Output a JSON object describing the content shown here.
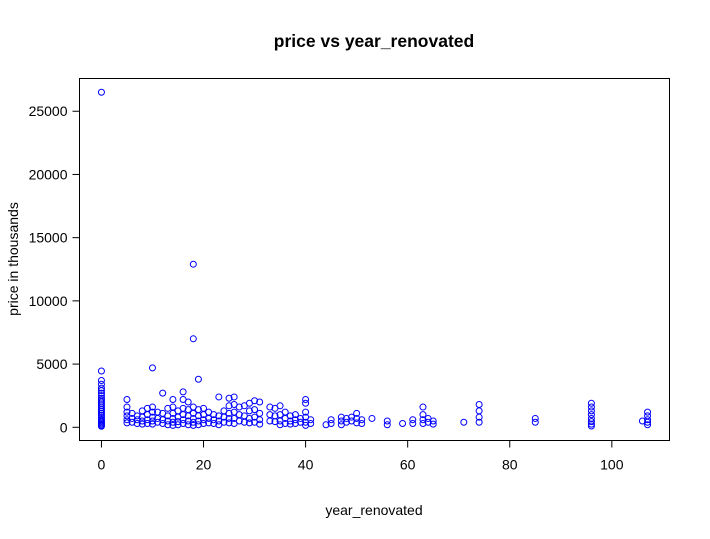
{
  "chart_data": {
    "type": "scatter",
    "title": "price vs year_renovated",
    "xlabel": "year_renovated",
    "ylabel": "price in thousands",
    "xlim": [
      -4.3,
      111.3
    ],
    "ylim": [
      -1045,
      27590
    ],
    "xticks": [
      0,
      20,
      40,
      60,
      80,
      100
    ],
    "yticks": [
      0,
      5000,
      10000,
      15000,
      20000,
      25000
    ],
    "grid": false,
    "marker": "open-circle",
    "color": "#0000ff",
    "series": [
      {
        "points": [
          [
            0,
            26500
          ],
          [
            0,
            4450
          ],
          [
            0,
            3700
          ],
          [
            0,
            3400
          ],
          [
            0,
            3100
          ],
          [
            0,
            2900
          ],
          [
            0,
            2700
          ],
          [
            0,
            2500
          ],
          [
            0,
            2300
          ],
          [
            0,
            2150
          ],
          [
            0,
            2000
          ],
          [
            0,
            1850
          ],
          [
            0,
            1700
          ],
          [
            0,
            1550
          ],
          [
            0,
            1400
          ],
          [
            0,
            1250
          ],
          [
            0,
            1100
          ],
          [
            0,
            950
          ],
          [
            0,
            820
          ],
          [
            0,
            700
          ],
          [
            0,
            580
          ],
          [
            0,
            460
          ],
          [
            0,
            350
          ],
          [
            0,
            250
          ],
          [
            0,
            150
          ],
          [
            0,
            80
          ],
          [
            5,
            2200
          ],
          [
            5,
            1600
          ],
          [
            5,
            1200
          ],
          [
            5,
            900
          ],
          [
            5,
            600
          ],
          [
            5,
            350
          ],
          [
            6,
            1100
          ],
          [
            6,
            700
          ],
          [
            6,
            400
          ],
          [
            7,
            900
          ],
          [
            7,
            600
          ],
          [
            7,
            300
          ],
          [
            8,
            1300
          ],
          [
            8,
            800
          ],
          [
            8,
            500
          ],
          [
            8,
            250
          ],
          [
            9,
            1500
          ],
          [
            9,
            1000
          ],
          [
            9,
            600
          ],
          [
            9,
            300
          ],
          [
            10,
            4700
          ],
          [
            10,
            1600
          ],
          [
            10,
            1200
          ],
          [
            10,
            800
          ],
          [
            10,
            500
          ],
          [
            10,
            250
          ],
          [
            11,
            1200
          ],
          [
            11,
            700
          ],
          [
            11,
            400
          ],
          [
            12,
            2700
          ],
          [
            12,
            1100
          ],
          [
            12,
            600
          ],
          [
            12,
            300
          ],
          [
            13,
            1500
          ],
          [
            13,
            900
          ],
          [
            13,
            500
          ],
          [
            13,
            200
          ],
          [
            14,
            2200
          ],
          [
            14,
            1600
          ],
          [
            14,
            1100
          ],
          [
            14,
            700
          ],
          [
            14,
            400
          ],
          [
            14,
            150
          ],
          [
            15,
            1300
          ],
          [
            15,
            800
          ],
          [
            15,
            450
          ],
          [
            15,
            200
          ],
          [
            16,
            2800
          ],
          [
            16,
            2200
          ],
          [
            16,
            1500
          ],
          [
            16,
            1000
          ],
          [
            16,
            600
          ],
          [
            16,
            300
          ],
          [
            17,
            2000
          ],
          [
            17,
            1400
          ],
          [
            17,
            900
          ],
          [
            17,
            500
          ],
          [
            17,
            200
          ],
          [
            18,
            12900
          ],
          [
            18,
            7000
          ],
          [
            18,
            1600
          ],
          [
            18,
            1100
          ],
          [
            18,
            700
          ],
          [
            18,
            400
          ],
          [
            18,
            150
          ],
          [
            19,
            3800
          ],
          [
            19,
            1400
          ],
          [
            19,
            900
          ],
          [
            19,
            500
          ],
          [
            19,
            200
          ],
          [
            20,
            1500
          ],
          [
            20,
            1000
          ],
          [
            20,
            600
          ],
          [
            20,
            300
          ],
          [
            21,
            1200
          ],
          [
            21,
            700
          ],
          [
            21,
            350
          ],
          [
            22,
            1000
          ],
          [
            22,
            600
          ],
          [
            22,
            300
          ],
          [
            23,
            2400
          ],
          [
            23,
            900
          ],
          [
            23,
            500
          ],
          [
            23,
            200
          ],
          [
            24,
            1300
          ],
          [
            24,
            800
          ],
          [
            24,
            400
          ],
          [
            25,
            2300
          ],
          [
            25,
            1700
          ],
          [
            25,
            1100
          ],
          [
            25,
            700
          ],
          [
            25,
            350
          ],
          [
            26,
            2400
          ],
          [
            26,
            1800
          ],
          [
            26,
            1200
          ],
          [
            26,
            700
          ],
          [
            26,
            300
          ],
          [
            27,
            1600
          ],
          [
            27,
            1000
          ],
          [
            27,
            500
          ],
          [
            28,
            1700
          ],
          [
            28,
            900
          ],
          [
            28,
            400
          ],
          [
            29,
            1900
          ],
          [
            29,
            1300
          ],
          [
            29,
            700
          ],
          [
            29,
            350
          ],
          [
            30,
            2100
          ],
          [
            30,
            1400
          ],
          [
            30,
            800
          ],
          [
            30,
            400
          ],
          [
            31,
            2000
          ],
          [
            31,
            1100
          ],
          [
            31,
            600
          ],
          [
            31,
            250
          ],
          [
            33,
            1600
          ],
          [
            33,
            1000
          ],
          [
            33,
            500
          ],
          [
            34,
            1500
          ],
          [
            34,
            900
          ],
          [
            34,
            450
          ],
          [
            35,
            1700
          ],
          [
            35,
            1000
          ],
          [
            35,
            500
          ],
          [
            35,
            200
          ],
          [
            36,
            1200
          ],
          [
            36,
            700
          ],
          [
            36,
            300
          ],
          [
            37,
            900
          ],
          [
            37,
            500
          ],
          [
            37,
            250
          ],
          [
            38,
            1000
          ],
          [
            38,
            600
          ],
          [
            38,
            300
          ],
          [
            39,
            700
          ],
          [
            39,
            400
          ],
          [
            40,
            2200
          ],
          [
            40,
            1900
          ],
          [
            40,
            1200
          ],
          [
            40,
            800
          ],
          [
            40,
            400
          ],
          [
            40,
            150
          ],
          [
            41,
            600
          ],
          [
            41,
            300
          ],
          [
            44,
            200
          ],
          [
            45,
            600
          ],
          [
            45,
            300
          ],
          [
            47,
            800
          ],
          [
            47,
            500
          ],
          [
            47,
            200
          ],
          [
            48,
            700
          ],
          [
            48,
            400
          ],
          [
            49,
            800
          ],
          [
            49,
            500
          ],
          [
            50,
            1100
          ],
          [
            50,
            700
          ],
          [
            50,
            350
          ],
          [
            51,
            600
          ],
          [
            51,
            300
          ],
          [
            53,
            700
          ],
          [
            56,
            500
          ],
          [
            56,
            200
          ],
          [
            59,
            300
          ],
          [
            61,
            600
          ],
          [
            61,
            300
          ],
          [
            63,
            1600
          ],
          [
            63,
            1000
          ],
          [
            63,
            600
          ],
          [
            63,
            300
          ],
          [
            64,
            700
          ],
          [
            64,
            400
          ],
          [
            65,
            500
          ],
          [
            65,
            250
          ],
          [
            71,
            400
          ],
          [
            74,
            1800
          ],
          [
            74,
            1300
          ],
          [
            74,
            800
          ],
          [
            74,
            400
          ],
          [
            85,
            700
          ],
          [
            85,
            400
          ],
          [
            96,
            1900
          ],
          [
            96,
            1600
          ],
          [
            96,
            1300
          ],
          [
            96,
            1000
          ],
          [
            96,
            700
          ],
          [
            96,
            450
          ],
          [
            96,
            250
          ],
          [
            96,
            100
          ],
          [
            106,
            500
          ],
          [
            107,
            1200
          ],
          [
            107,
            900
          ],
          [
            107,
            600
          ],
          [
            107,
            400
          ],
          [
            107,
            200
          ]
        ]
      }
    ]
  }
}
